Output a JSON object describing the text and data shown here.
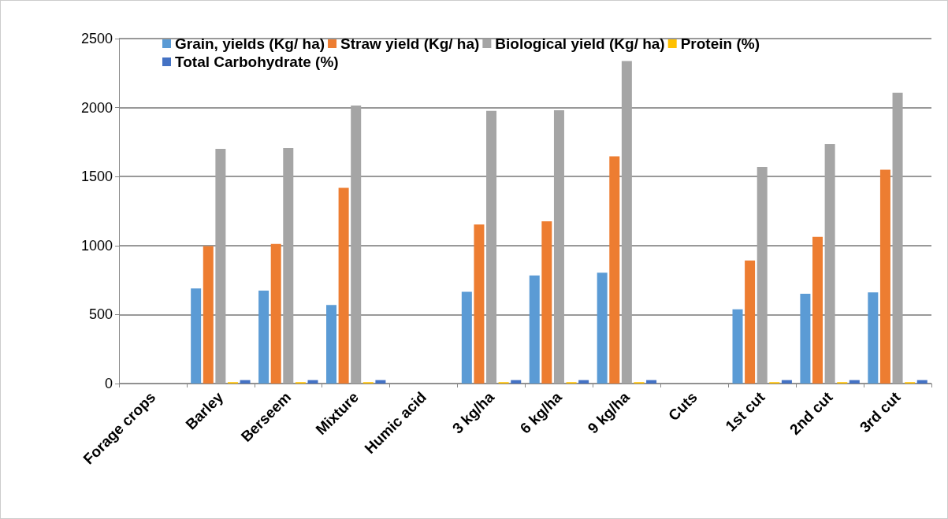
{
  "chart_data": {
    "type": "bar",
    "categories": [
      "Forage crops",
      "Barley",
      "Berseem",
      "Mixture",
      "Humic acid",
      "3 kg/ha",
      "6 kg/ha",
      "9 kg/ha",
      "Cuts",
      "1st cut",
      "2nd cut",
      "3rd cut"
    ],
    "series": [
      {
        "name": "Grain, yields (Kg/ ha)",
        "color": "#5b9bd5",
        "values": [
          null,
          689,
          674,
          570,
          null,
          665,
          784,
          803,
          null,
          538,
          650,
          661
        ]
      },
      {
        "name": "Straw yield (Kg/ ha)",
        "color": "#ed7d31",
        "values": [
          null,
          996,
          1011,
          1419,
          null,
          1153,
          1176,
          1646,
          null,
          892,
          1063,
          1549
        ]
      },
      {
        "name": "Biological yield (Kg/ ha)",
        "color": "#a5a5a5",
        "values": [
          null,
          1701,
          1706,
          2015,
          null,
          1976,
          1981,
          2337,
          null,
          1570,
          1735,
          2108
        ]
      },
      {
        "name": "Protein (%)",
        "color": "#ffc000",
        "values": [
          null,
          10,
          10,
          10,
          null,
          10,
          10,
          10,
          null,
          10,
          10,
          10
        ]
      },
      {
        "name": "Total Carbohydrate (%)",
        "color": "#4472c4",
        "values": [
          null,
          25,
          25,
          25,
          null,
          25,
          25,
          25,
          null,
          25,
          25,
          25
        ]
      }
    ],
    "ylim": [
      0,
      2500
    ],
    "yticks": [
      0,
      500,
      1000,
      1500,
      2000,
      2500
    ],
    "grid": "y",
    "legend": "top left"
  }
}
